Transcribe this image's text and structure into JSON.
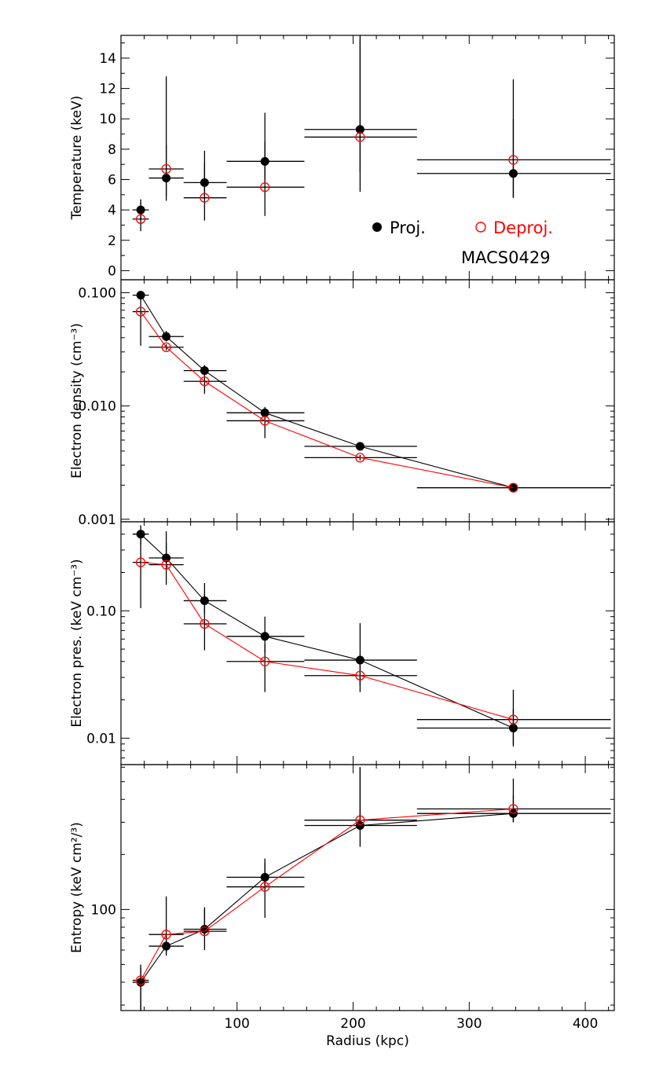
{
  "chart_data": [
    {
      "type": "scatter",
      "ylabel": "Temperature (keV)",
      "yscale": "linear",
      "ylim": [
        -0.6,
        15.5
      ],
      "yticks": [
        0,
        2,
        4,
        6,
        8,
        10,
        12,
        14
      ],
      "ytick_labels": [
        "0",
        "2",
        "4",
        "6",
        "8",
        "10",
        "12",
        "14"
      ],
      "connect_points": false,
      "legend": {
        "placement": "bottom-right",
        "entries": [
          "Proj.",
          "Deproj."
        ]
      },
      "annotation": "MACS0429",
      "series": [
        {
          "name": "Proj.",
          "color": "#000000",
          "marker": "filled-circle",
          "points": [
            {
              "x": 17,
              "xerr": [
                10,
                24
              ],
              "y": 4.0,
              "yerr": [
                3.3,
                4.7
              ]
            },
            {
              "x": 39,
              "xerr": [
                24,
                54
              ],
              "y": 6.1,
              "yerr": [
                4.9,
                8.3
              ]
            },
            {
              "x": 72,
              "xerr": [
                54,
                91
              ],
              "y": 5.8,
              "yerr": [
                4.6,
                7.9
              ]
            },
            {
              "x": 124,
              "xerr": [
                91,
                158
              ],
              "y": 7.2,
              "yerr": [
                6.0,
                10.4
              ]
            },
            {
              "x": 206,
              "xerr": [
                158,
                255
              ],
              "y": 9.3,
              "yerr": [
                6.5,
                15.2
              ]
            },
            {
              "x": 338,
              "xerr": [
                255,
                422
              ],
              "y": 6.4,
              "yerr": [
                4.8,
                10.0
              ]
            }
          ]
        },
        {
          "name": "Deproj.",
          "color": "#ff0000",
          "marker": "open-circle",
          "points": [
            {
              "x": 17,
              "xerr": [
                10,
                24
              ],
              "y": 3.4,
              "yerr": [
                2.6,
                4.5
              ]
            },
            {
              "x": 39,
              "xerr": [
                24,
                54
              ],
              "y": 6.7,
              "yerr": [
                4.6,
                12.8
              ]
            },
            {
              "x": 72,
              "xerr": [
                54,
                91
              ],
              "y": 4.8,
              "yerr": [
                3.3,
                7.1
              ]
            },
            {
              "x": 124,
              "xerr": [
                91,
                158
              ],
              "y": 5.5,
              "yerr": [
                3.6,
                8.5
              ]
            },
            {
              "x": 206,
              "xerr": [
                158,
                255
              ],
              "y": 8.8,
              "yerr": [
                5.2,
                15.5
              ]
            },
            {
              "x": 338,
              "xerr": [
                255,
                422
              ],
              "y": 7.3,
              "yerr": [
                4.8,
                12.6
              ]
            }
          ]
        }
      ]
    },
    {
      "type": "line",
      "ylabel": "Electron density (cm⁻³)",
      "yscale": "log",
      "ylim": [
        0.00095,
        0.13
      ],
      "yticks": [
        0.001,
        0.01,
        0.1
      ],
      "ytick_labels": [
        "0.001",
        "0.010",
        "0.100"
      ],
      "connect_points": true,
      "series": [
        {
          "name": "Proj.",
          "color": "#000000",
          "marker": "filled-circle",
          "points": [
            {
              "x": 17,
              "xerr": [
                10,
                24
              ],
              "y": 0.095,
              "yerr": [
                0.088,
                0.102
              ]
            },
            {
              "x": 39,
              "xerr": [
                24,
                54
              ],
              "y": 0.041,
              "yerr": [
                0.037,
                0.046
              ]
            },
            {
              "x": 72,
              "xerr": [
                54,
                91
              ],
              "y": 0.0205,
              "yerr": [
                0.0185,
                0.023
              ]
            },
            {
              "x": 124,
              "xerr": [
                91,
                158
              ],
              "y": 0.0087,
              "yerr": [
                0.0079,
                0.0096
              ]
            },
            {
              "x": 206,
              "xerr": [
                158,
                255
              ],
              "y": 0.0044,
              "yerr": [
                0.0041,
                0.0047
              ]
            },
            {
              "x": 338,
              "xerr": [
                255,
                422
              ],
              "y": 0.0019,
              "yerr": [
                0.00183,
                0.00197
              ]
            }
          ]
        },
        {
          "name": "Deproj.",
          "color": "#ff0000",
          "marker": "open-circle",
          "points": [
            {
              "x": 17,
              "xerr": [
                10,
                24
              ],
              "y": 0.068,
              "yerr": [
                0.034,
                0.094
              ]
            },
            {
              "x": 39,
              "xerr": [
                24,
                54
              ],
              "y": 0.033,
              "yerr": [
                0.031,
                0.035
              ]
            },
            {
              "x": 72,
              "xerr": [
                54,
                91
              ],
              "y": 0.0165,
              "yerr": [
                0.0128,
                0.0215
              ]
            },
            {
              "x": 124,
              "xerr": [
                91,
                158
              ],
              "y": 0.0074,
              "yerr": [
                0.0052,
                0.0098
              ]
            },
            {
              "x": 206,
              "xerr": [
                158,
                255
              ],
              "y": 0.0035,
              "yerr": [
                0.0033,
                0.0037
              ]
            },
            {
              "x": 338,
              "xerr": [
                255,
                422
              ],
              "y": 0.0019,
              "yerr": [
                0.00183,
                0.00197
              ]
            }
          ]
        }
      ]
    },
    {
      "type": "line",
      "ylabel": "Electron pres. (keV cm⁻³)",
      "yscale": "log",
      "ylim": [
        0.0062,
        0.5
      ],
      "yticks": [
        0.01,
        0.1
      ],
      "ytick_labels": [
        "0.01",
        "0.10"
      ],
      "connect_points": true,
      "series": [
        {
          "name": "Proj.",
          "color": "#000000",
          "marker": "filled-circle",
          "points": [
            {
              "x": 17,
              "xerr": [
                10,
                24
              ],
              "y": 0.4,
              "yerr": [
                0.33,
                0.47
              ]
            },
            {
              "x": 39,
              "xerr": [
                24,
                54
              ],
              "y": 0.26,
              "yerr": [
                0.21,
                0.34
              ]
            },
            {
              "x": 72,
              "xerr": [
                54,
                91
              ],
              "y": 0.12,
              "yerr": [
                0.095,
                0.165
              ]
            },
            {
              "x": 124,
              "xerr": [
                91,
                158
              ],
              "y": 0.063,
              "yerr": [
                0.047,
                0.09
              ]
            },
            {
              "x": 206,
              "xerr": [
                158,
                255
              ],
              "y": 0.041,
              "yerr": [
                0.026,
                0.08
              ]
            },
            {
              "x": 338,
              "xerr": [
                255,
                422
              ],
              "y": 0.012,
              "yerr": [
                0.0089,
                0.017
              ]
            }
          ]
        },
        {
          "name": "Deproj.",
          "color": "#ff0000",
          "marker": "open-circle",
          "points": [
            {
              "x": 17,
              "xerr": [
                10,
                24
              ],
              "y": 0.24,
              "yerr": [
                0.105,
                0.38
              ]
            },
            {
              "x": 39,
              "xerr": [
                24,
                54
              ],
              "y": 0.23,
              "yerr": [
                0.16,
                0.42
              ]
            },
            {
              "x": 72,
              "xerr": [
                54,
                91
              ],
              "y": 0.079,
              "yerr": [
                0.049,
                0.135
              ]
            },
            {
              "x": 124,
              "xerr": [
                91,
                158
              ],
              "y": 0.04,
              "yerr": [
                0.023,
                0.055
              ]
            },
            {
              "x": 206,
              "xerr": [
                158,
                255
              ],
              "y": 0.031,
              "yerr": [
                0.023,
                0.045
              ]
            },
            {
              "x": 338,
              "xerr": [
                255,
                422
              ],
              "y": 0.014,
              "yerr": [
                0.0086,
                0.024
              ]
            }
          ]
        }
      ]
    },
    {
      "type": "line",
      "ylabel": "Entropy (keV cm²/³)",
      "xlabel": "Radius (kpc)",
      "yscale": "log",
      "xlim": [
        0,
        425
      ],
      "xticks": [
        100,
        200,
        300,
        400
      ],
      "xtick_labels": [
        "100",
        "200",
        "300",
        "400"
      ],
      "ylim": [
        28,
        620
      ],
      "yticks": [
        100
      ],
      "ytick_labels": [
        "100"
      ],
      "connect_points": true,
      "series": [
        {
          "name": "Proj.",
          "color": "#000000",
          "marker": "filled-circle",
          "points": [
            {
              "x": 17,
              "xerr": [
                10,
                24
              ],
              "y": 40,
              "yerr": [
                28,
                48
              ]
            },
            {
              "x": 39,
              "xerr": [
                24,
                54
              ],
              "y": 63,
              "yerr": [
                56,
                72
              ]
            },
            {
              "x": 72,
              "xerr": [
                54,
                91
              ],
              "y": 78,
              "yerr": [
                72,
                103
              ]
            },
            {
              "x": 124,
              "xerr": [
                91,
                158
              ],
              "y": 150,
              "yerr": [
                130,
                190
              ]
            },
            {
              "x": 206,
              "xerr": [
                158,
                255
              ],
              "y": 288,
              "yerr": [
                220,
                600
              ]
            },
            {
              "x": 338,
              "xerr": [
                255,
                422
              ],
              "y": 335,
              "yerr": [
                300,
                420
              ]
            }
          ]
        },
        {
          "name": "Deproj.",
          "color": "#ff0000",
          "marker": "open-circle",
          "points": [
            {
              "x": 17,
              "xerr": [
                10,
                24
              ],
              "y": 41,
              "yerr": [
                28,
                50
              ]
            },
            {
              "x": 39,
              "xerr": [
                24,
                54
              ],
              "y": 73,
              "yerr": [
                58,
                118
              ]
            },
            {
              "x": 72,
              "xerr": [
                54,
                91
              ],
              "y": 76,
              "yerr": [
                60,
                100
              ]
            },
            {
              "x": 124,
              "xerr": [
                91,
                158
              ],
              "y": 133,
              "yerr": [
                90,
                180
              ]
            },
            {
              "x": 206,
              "xerr": [
                158,
                255
              ],
              "y": 308,
              "yerr": [
                280,
                600
              ]
            },
            {
              "x": 338,
              "xerr": [
                255,
                422
              ],
              "y": 355,
              "yerr": [
                300,
                520
              ]
            }
          ]
        }
      ]
    }
  ]
}
